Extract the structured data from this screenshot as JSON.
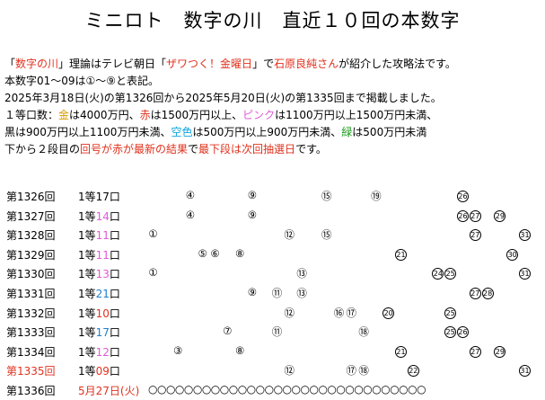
{
  "title": "ミニロト　数字の川　直近１０回の本数字",
  "intro": {
    "line1": [
      {
        "t": "「",
        "c": ""
      },
      {
        "t": "数字の川",
        "c": "red"
      },
      {
        "t": "」理論はテレビ朝日「",
        "c": ""
      },
      {
        "t": "ザワつく！金曜日",
        "c": "red"
      },
      {
        "t": "」で",
        "c": ""
      },
      {
        "t": "石原良純さん",
        "c": "red"
      },
      {
        "t": "が紹介した攻略法です。",
        "c": ""
      }
    ],
    "line2": "本数字01～09は①～⑨と表記。",
    "line3": "2025年3月18日(火)の第1326回から2025年5月20日(火)の第1335回まで掲載しました。",
    "line4": [
      {
        "t": "１等口数：",
        "c": ""
      },
      {
        "t": "金",
        "c": "gold"
      },
      {
        "t": "は4000万円、",
        "c": ""
      },
      {
        "t": "赤",
        "c": "red"
      },
      {
        "t": "は1500万円以上、",
        "c": ""
      },
      {
        "t": "ピンク",
        "c": "pink"
      },
      {
        "t": "は1100万円以上1500万円未満、",
        "c": ""
      }
    ],
    "line5": [
      {
        "t": "黒は900万円以上1100万円未満、",
        "c": ""
      },
      {
        "t": "空色",
        "c": "cyan"
      },
      {
        "t": "は500万円以上900万円未満、",
        "c": ""
      },
      {
        "t": "緑",
        "c": "green"
      },
      {
        "t": "は500万円未満",
        "c": ""
      }
    ],
    "line6": [
      {
        "t": "下から２段目の",
        "c": ""
      },
      {
        "t": "回号が赤が最新の結果",
        "c": "red"
      },
      {
        "t": "で",
        "c": ""
      },
      {
        "t": "最下段は次回抽選日",
        "c": "red"
      },
      {
        "t": "です。",
        "c": ""
      }
    ]
  },
  "rows": [
    {
      "label": "第1326回",
      "label_color": "",
      "prize_pre": "1等",
      "prize_num": "17",
      "prize_post": "口",
      "prize_color": "",
      "numbers": [
        "④",
        "⑨",
        "⑮",
        "⑲",
        "26"
      ]
    },
    {
      "label": "第1327回",
      "label_color": "",
      "prize_pre": "1等",
      "prize_num": "14",
      "prize_post": "口",
      "prize_color": "pink",
      "numbers": [
        "④",
        "⑨",
        "26",
        "27",
        "29"
      ]
    },
    {
      "label": "第1328回",
      "label_color": "",
      "prize_pre": "1等",
      "prize_num": "11",
      "prize_post": "口",
      "prize_color": "pink",
      "numbers": [
        "①",
        "⑫",
        "⑮",
        "27",
        "31"
      ]
    },
    {
      "label": "第1329回",
      "label_color": "",
      "prize_pre": "1等",
      "prize_num": "11",
      "prize_post": "口",
      "prize_color": "pink",
      "numbers": [
        "⑤",
        "⑥",
        "⑧",
        "21",
        "30"
      ]
    },
    {
      "label": "第1330回",
      "label_color": "",
      "prize_pre": "1等",
      "prize_num": "13",
      "prize_post": "口",
      "prize_color": "pink",
      "numbers": [
        "①",
        "⑬",
        "24",
        "25",
        "31"
      ]
    },
    {
      "label": "第1331回",
      "label_color": "",
      "prize_pre": "1等",
      "prize_num": "21",
      "prize_post": "口",
      "prize_color": "blue",
      "numbers": [
        "⑨",
        "⑪",
        "⑬",
        "27",
        "28"
      ]
    },
    {
      "label": "第1332回",
      "label_color": "",
      "prize_pre": "1等",
      "prize_num": "10",
      "prize_post": "口",
      "prize_color": "red",
      "numbers": [
        "⑫",
        "⑯",
        "⑰",
        "20",
        "25"
      ]
    },
    {
      "label": "第1333回",
      "label_color": "",
      "prize_pre": "1等",
      "prize_num": "17",
      "prize_post": "口",
      "prize_color": "blue",
      "numbers": [
        "⑦",
        "⑪",
        "⑱",
        "25",
        "26"
      ]
    },
    {
      "label": "第1334回",
      "label_color": "",
      "prize_pre": "1等",
      "prize_num": "12",
      "prize_post": "口",
      "prize_color": "pink",
      "numbers": [
        "③",
        "⑧",
        "21",
        "27",
        "29"
      ]
    },
    {
      "label": "第1335回",
      "label_color": "red",
      "prize_pre": "1等",
      "prize_num": "09",
      "prize_post": "口",
      "prize_color": "red",
      "numbers": [
        "⑫",
        "⑰",
        "⑱",
        "22",
        "31"
      ]
    }
  ],
  "next_row": {
    "label": "第1336回",
    "date": "5月27日(火)",
    "circles": "○○○○○○○○○○○○○○○○○○○○○○○○○○○○○○○"
  },
  "colors": {
    "red": "#e0321e",
    "gold": "#d99a00",
    "pink": "#e05ad6",
    "cyan": "#0fa5e0",
    "green": "#1e9a1e",
    "blue": "#1e7fd0"
  }
}
